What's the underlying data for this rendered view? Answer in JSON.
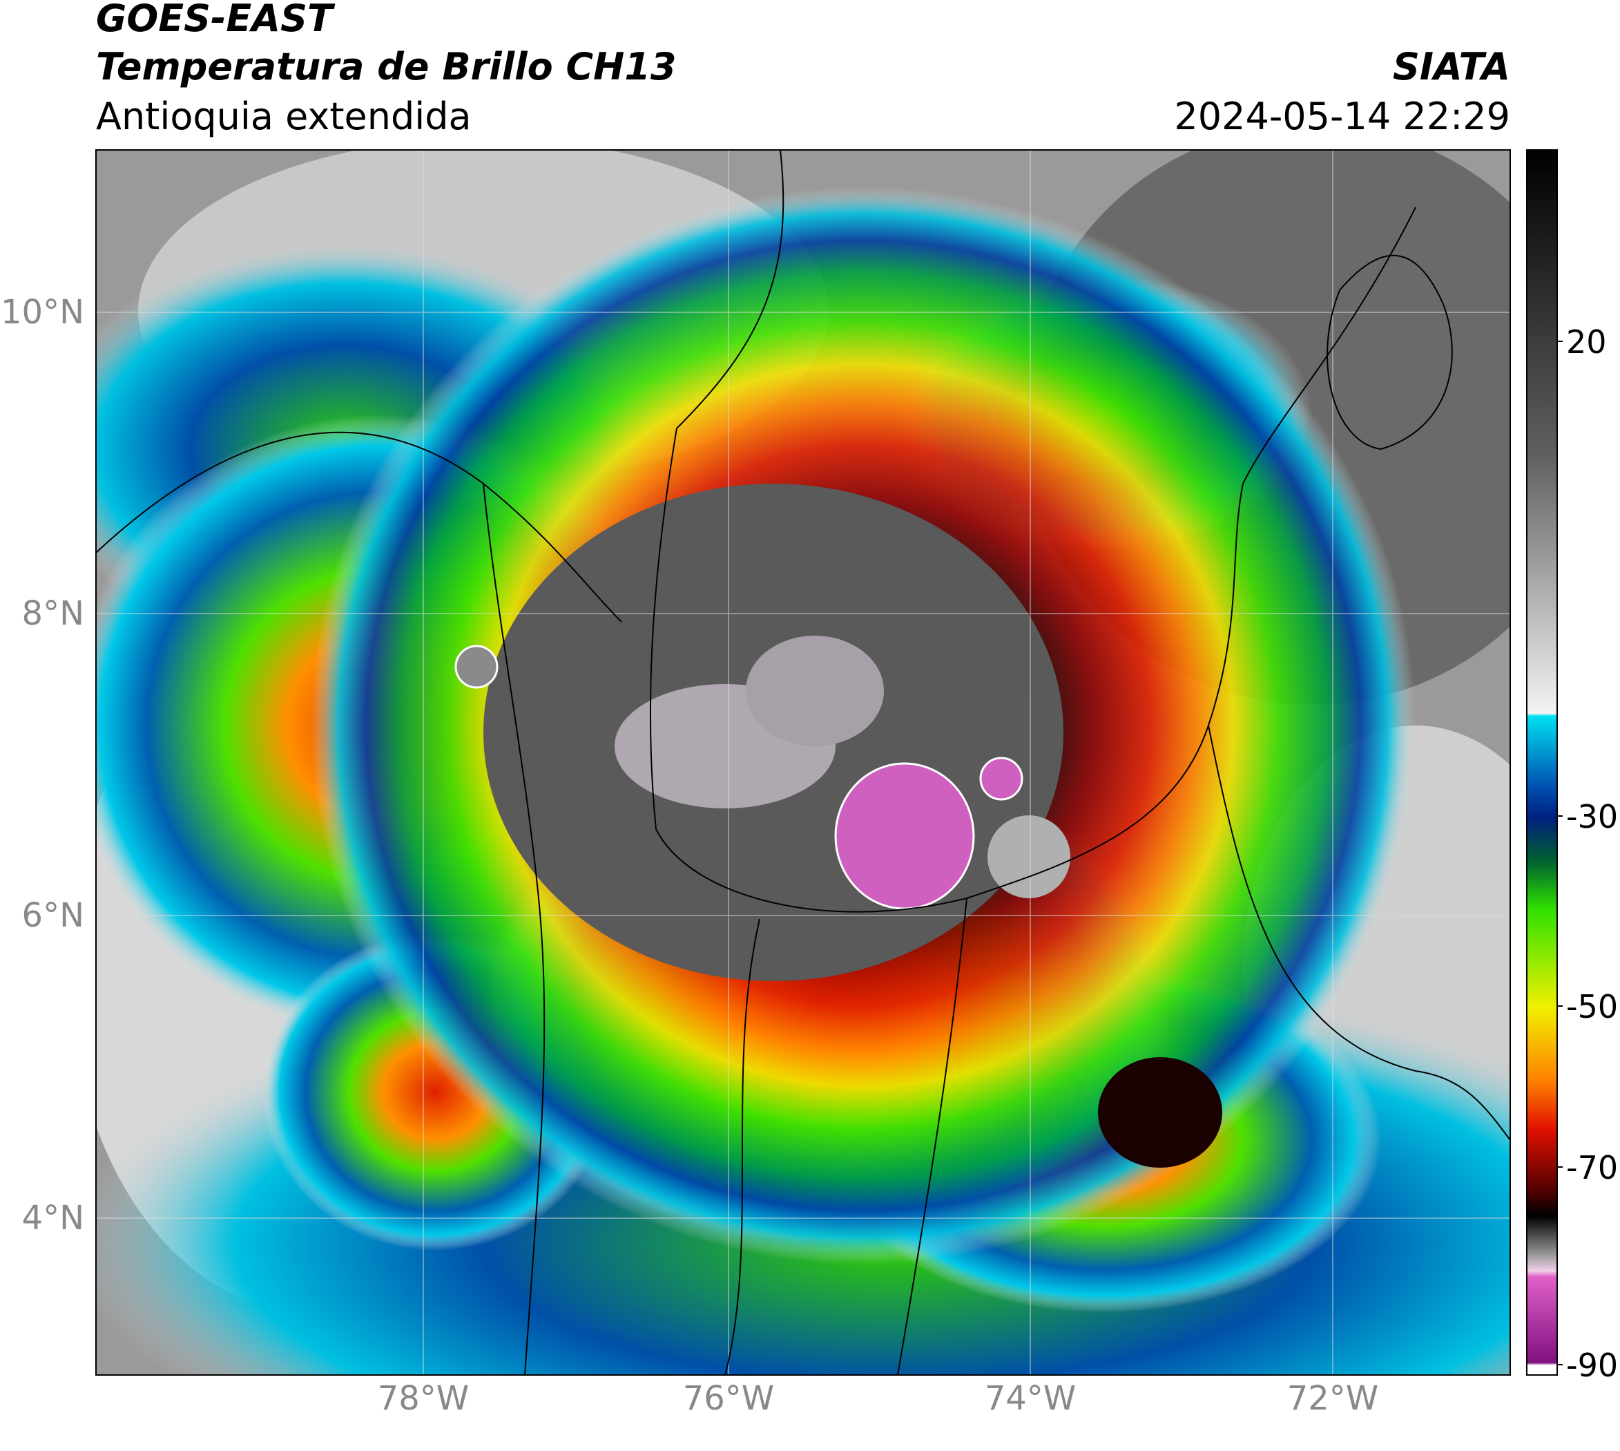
{
  "header": {
    "title": "GOES-EAST",
    "subtitle": "Temperatura de Brillo CH13",
    "region": "Antioquia extendida",
    "source": "SIATA",
    "timestamp": "2024-05-14 22:29"
  },
  "map": {
    "lat_labels": [
      "10°N",
      "8°N",
      "6°N",
      "4°N"
    ],
    "lon_labels": [
      "78°W",
      "76°W",
      "74°W",
      "72°W"
    ]
  },
  "colorbar": {
    "tick_labels": [
      "20",
      "-30",
      "-50",
      "-70",
      "-90"
    ]
  }
}
